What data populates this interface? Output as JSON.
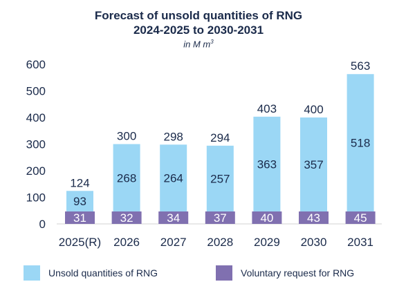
{
  "chart_data": {
    "type": "bar",
    "title_line1": "Forecast of unsold quantities of RNG",
    "title_line2": "2024-2025 to 2030-2031",
    "subtitle": "in M m",
    "subtitle_sup": "3",
    "categories": [
      "2025(R)",
      "2026",
      "2027",
      "2028",
      "2029",
      "2030",
      "2031"
    ],
    "series": [
      {
        "name": "Unsold quantities of RNG",
        "values": [
          93,
          268,
          264,
          257,
          363,
          357,
          518
        ],
        "color": "#9bd7f5"
      },
      {
        "name": "Voluntary request for RNG",
        "values": [
          31,
          32,
          34,
          37,
          40,
          43,
          45
        ],
        "color": "#8070b0"
      }
    ],
    "totals": [
      124,
      300,
      298,
      294,
      403,
      400,
      563
    ],
    "ylim": [
      0,
      600
    ],
    "yticks": [
      0,
      100,
      200,
      300,
      400,
      500,
      600
    ],
    "stacked": true,
    "grid": false,
    "legend_position": "bottom"
  }
}
